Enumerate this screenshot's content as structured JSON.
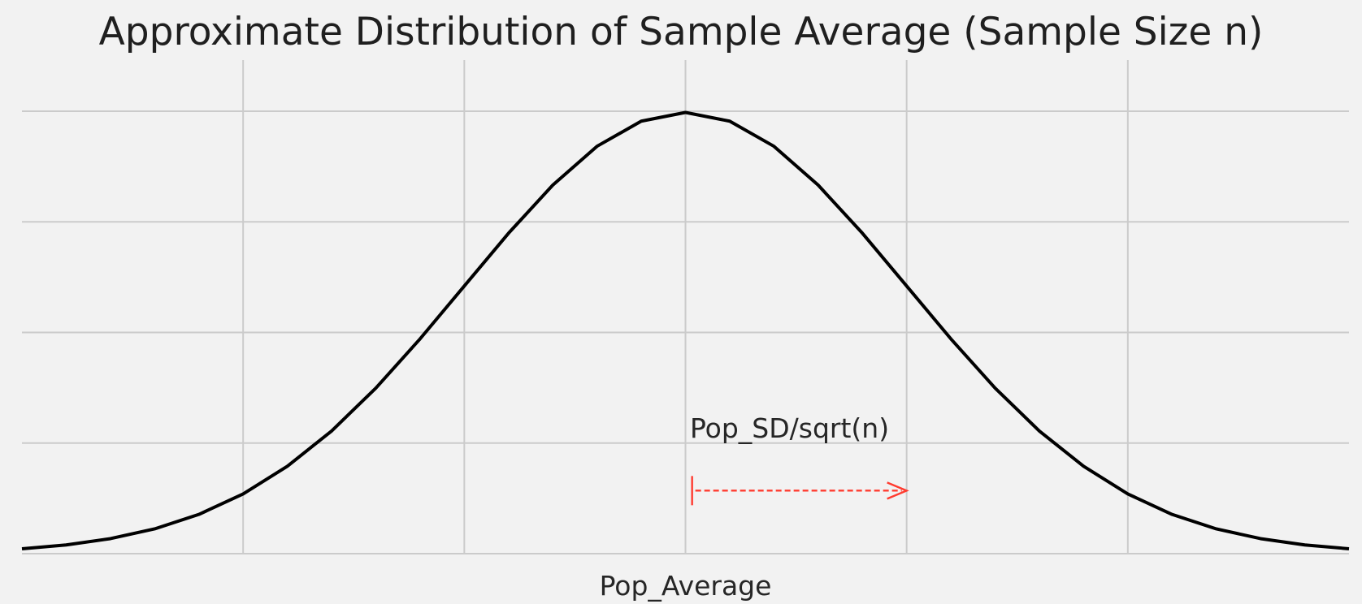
{
  "chart_data": {
    "type": "line",
    "title": "Approximate Distribution of Sample Average (Sample Size n)",
    "xlabel": "",
    "ylabel": "",
    "xlim": [
      -3,
      3
    ],
    "ylim": [
      0,
      0.4
    ],
    "x_grid_values": [
      -2,
      -1,
      0,
      1,
      2
    ],
    "y_grid_values": [
      0,
      0.1,
      0.2,
      0.3,
      0.4
    ],
    "x_tick_labels": [
      {
        "x": 0,
        "label": "Pop_Average"
      }
    ],
    "grid": true,
    "colors": {
      "background": "#f2f2f2",
      "curve": "#000000",
      "grid": "#cbcbcb",
      "annotation": "#ff3b2f"
    },
    "series": [
      {
        "x": [
          -3,
          -2.8,
          -2.6,
          -2.4,
          -2.2,
          -2,
          -1.8,
          -1.6,
          -1.4,
          -1.2,
          -1,
          -0.8,
          -0.6,
          -0.4,
          -0.2,
          0,
          0.2,
          0.4,
          0.6,
          0.8,
          1,
          1.2,
          1.4,
          1.6,
          1.8,
          2,
          2.2,
          2.4,
          2.6,
          2.8,
          3
        ],
        "y": [
          0.0044,
          0.0079,
          0.0136,
          0.0224,
          0.0355,
          0.054,
          0.079,
          0.1109,
          0.1497,
          0.1942,
          0.242,
          0.2897,
          0.3332,
          0.3683,
          0.391,
          0.3989,
          0.391,
          0.3683,
          0.3332,
          0.2897,
          0.242,
          0.1942,
          0.1497,
          0.1109,
          0.079,
          0.054,
          0.0355,
          0.0224,
          0.0136,
          0.0079,
          0.0044
        ]
      }
    ],
    "annotations": [
      {
        "type": "arrow",
        "label": "Pop_SD/sqrt(n)",
        "x_start": 0.03,
        "x_end": 1.0,
        "y": 0.057,
        "label_x": 0.02,
        "label_y": 0.105
      }
    ]
  }
}
